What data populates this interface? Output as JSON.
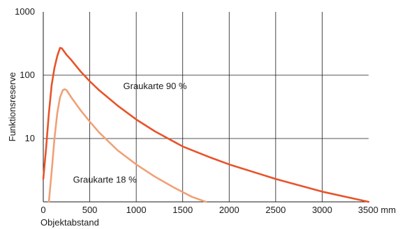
{
  "chart_data": {
    "type": "line",
    "title": "",
    "xlabel": "Objektabstand",
    "ylabel": "Funktionsreserve",
    "x_unit": "mm",
    "x_scale": "linear",
    "y_scale": "log",
    "xlim": [
      0,
      3500
    ],
    "ylim": [
      1,
      1000
    ],
    "x_ticks": [
      0,
      500,
      1000,
      1500,
      2000,
      2500,
      3000,
      3500
    ],
    "x_tick_labels": [
      "0",
      "500",
      "1000",
      "1500",
      "2000",
      "2500",
      "3000",
      "3500 mm"
    ],
    "y_ticks": [
      10,
      100,
      1000
    ],
    "y_tick_labels": [
      "10",
      "100",
      "1000"
    ],
    "grid": true,
    "legend": "none",
    "series": [
      {
        "name": "Graukarte 90 %",
        "color": "#e8532a",
        "x": [
          0,
          30,
          60,
          90,
          120,
          150,
          180,
          200,
          250,
          300,
          400,
          500,
          600,
          800,
          1000,
          1200,
          1500,
          1800,
          2000,
          2500,
          3000,
          3500
        ],
        "y": [
          2.3,
          7,
          25,
          70,
          130,
          200,
          270,
          265,
          210,
          175,
          115,
          80,
          58,
          33,
          20,
          13,
          7.5,
          5,
          3.9,
          2.3,
          1.45,
          1.0
        ]
      },
      {
        "name": "Graukarte 18 %",
        "color": "#f0a078",
        "x": [
          60,
          90,
          120,
          150,
          180,
          210,
          230,
          250,
          300,
          400,
          500,
          600,
          800,
          1000,
          1200,
          1400,
          1600,
          1750
        ],
        "y": [
          1.0,
          3,
          10,
          25,
          45,
          58,
          60,
          58,
          45,
          28,
          18.5,
          12.5,
          6.5,
          3.9,
          2.5,
          1.7,
          1.2,
          1.0
        ]
      }
    ],
    "annotations": [
      {
        "text": "Graukarte 90 %",
        "x": 860,
        "y": 60
      },
      {
        "text": "Graukarte 18 %",
        "x": 320,
        "y": 2.0
      }
    ]
  }
}
